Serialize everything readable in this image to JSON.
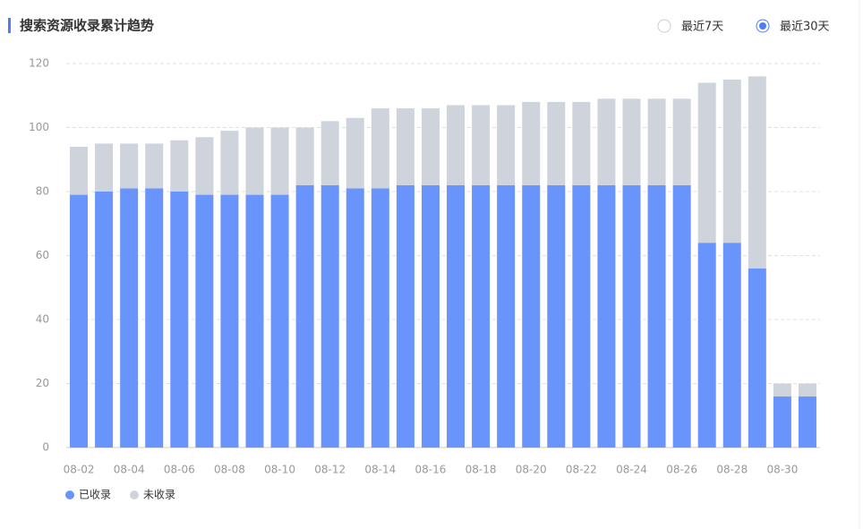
{
  "chart_data": {
    "type": "stacked_bar",
    "title": "搜索资源收录累计趋势",
    "range_options": [
      "最近7天",
      "最近30天"
    ],
    "selected_range": 1,
    "categories": [
      "08-02",
      null,
      "08-04",
      null,
      "08-06",
      null,
      "08-08",
      null,
      "08-10",
      null,
      "08-12",
      null,
      "08-14",
      null,
      "08-16",
      null,
      "08-18",
      null,
      "08-20",
      null,
      "08-22",
      null,
      "08-24",
      null,
      "08-26",
      null,
      "08-28",
      null,
      "08-30",
      null
    ],
    "series": [
      {
        "name": "已收录",
        "color": "#6894fc",
        "values": [
          79,
          80,
          81,
          81,
          80,
          79,
          79,
          79,
          79,
          82,
          82,
          81,
          81,
          82,
          82,
          82,
          82,
          82,
          82,
          82,
          82,
          82,
          82,
          82,
          82,
          64,
          64,
          56,
          16,
          16
        ]
      },
      {
        "name": "未收录",
        "color": "#cfd3dc",
        "values": [
          15,
          15,
          14,
          14,
          16,
          18,
          20,
          21,
          21,
          18,
          20,
          22,
          25,
          24,
          24,
          25,
          25,
          25,
          26,
          26,
          26,
          27,
          27,
          27,
          27,
          50,
          51,
          60,
          4,
          4
        ]
      }
    ],
    "ylim": [
      0,
      120
    ],
    "yticks": [
      0,
      20,
      40,
      60,
      80,
      100,
      120
    ],
    "grid": true,
    "legend": "bottom-left"
  }
}
